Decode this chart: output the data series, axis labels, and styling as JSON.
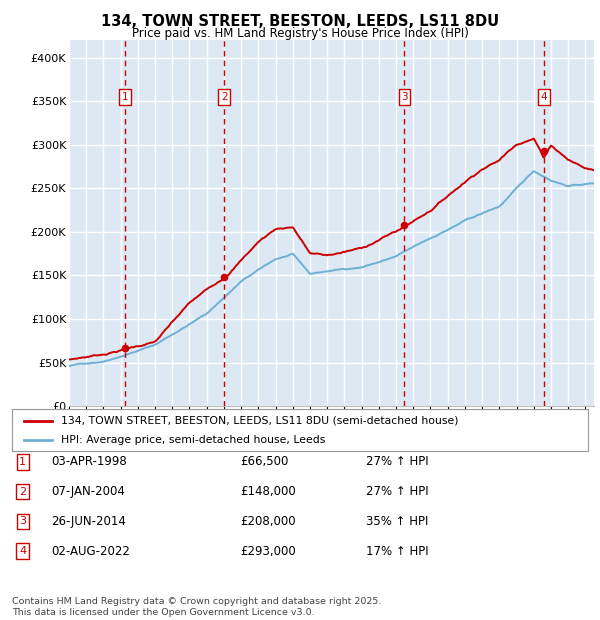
{
  "title": "134, TOWN STREET, BEESTON, LEEDS, LS11 8DU",
  "subtitle": "Price paid vs. HM Land Registry's House Price Index (HPI)",
  "property_label": "134, TOWN STREET, BEESTON, LEEDS, LS11 8DU (semi-detached house)",
  "hpi_label": "HPI: Average price, semi-detached house, Leeds",
  "footer": "Contains HM Land Registry data © Crown copyright and database right 2025.\nThis data is licensed under the Open Government Licence v3.0.",
  "transactions": [
    {
      "num": 1,
      "date": "03-APR-1998",
      "price": 66500,
      "pct": "27%",
      "dir": "↑"
    },
    {
      "num": 2,
      "date": "07-JAN-2004",
      "price": 148000,
      "pct": "27%",
      "dir": "↑"
    },
    {
      "num": 3,
      "date": "26-JUN-2014",
      "price": 208000,
      "pct": "35%",
      "dir": "↑"
    },
    {
      "num": 4,
      "date": "02-AUG-2022",
      "price": 293000,
      "pct": "17%",
      "dir": "↑"
    }
  ],
  "transaction_years": [
    1998.25,
    2004.02,
    2014.49,
    2022.58
  ],
  "transaction_prices": [
    66500,
    148000,
    208000,
    293000
  ],
  "ylim": [
    0,
    420000
  ],
  "yticks": [
    0,
    50000,
    100000,
    150000,
    200000,
    250000,
    300000,
    350000,
    400000
  ],
  "ytick_labels": [
    "£0",
    "£50K",
    "£100K",
    "£150K",
    "£200K",
    "£250K",
    "£300K",
    "£350K",
    "£400K"
  ],
  "background_color": "#dce9f5",
  "grid_color": "#ffffff",
  "red_color": "#cc0000",
  "blue_color": "#6eb0d4",
  "vline_color": "#cc0000",
  "box_color": "#cc0000",
  "xmin": 1995,
  "xmax": 2025.5
}
